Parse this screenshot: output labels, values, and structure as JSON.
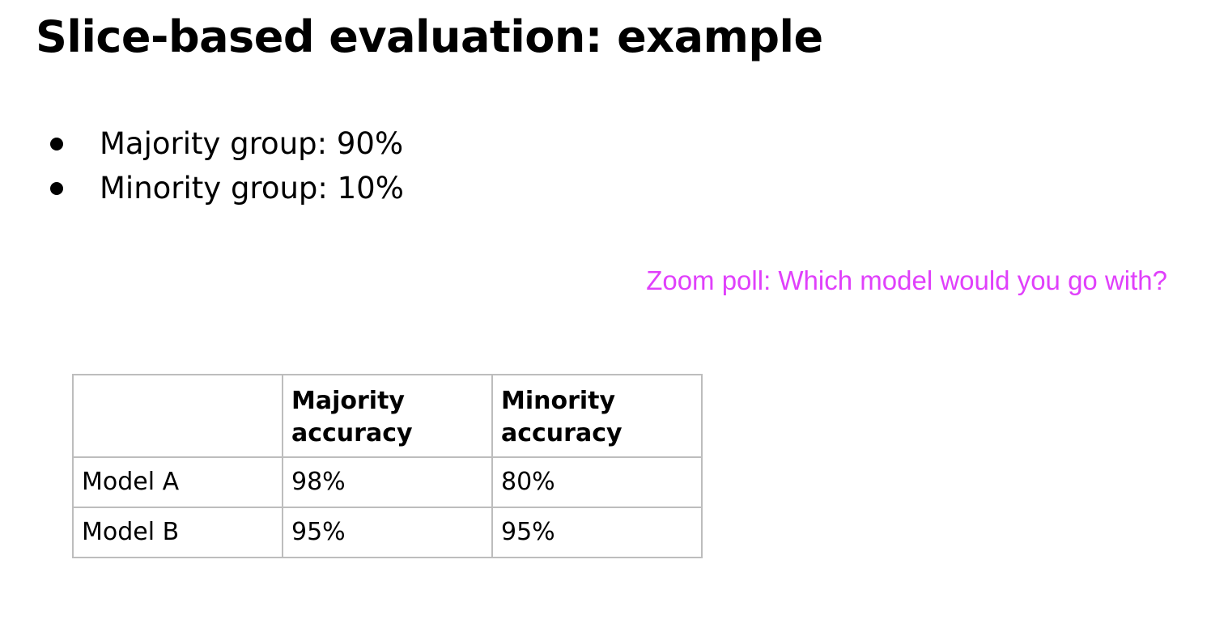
{
  "slide": {
    "title": "Slice-based evaluation: example",
    "bullets": [
      "Majority group: 90%",
      "Minority group: 10%"
    ],
    "poll_note": "Zoom poll: Which model would you go with?",
    "poll_color": "#e040fb"
  },
  "table": {
    "headers": [
      [
        "",
        ""
      ],
      [
        "Majority",
        "accuracy"
      ],
      [
        "Minority",
        "accuracy"
      ]
    ],
    "rows": [
      [
        "Model A",
        "98%",
        "80%"
      ],
      [
        "Model B",
        "95%",
        "95%"
      ]
    ]
  }
}
